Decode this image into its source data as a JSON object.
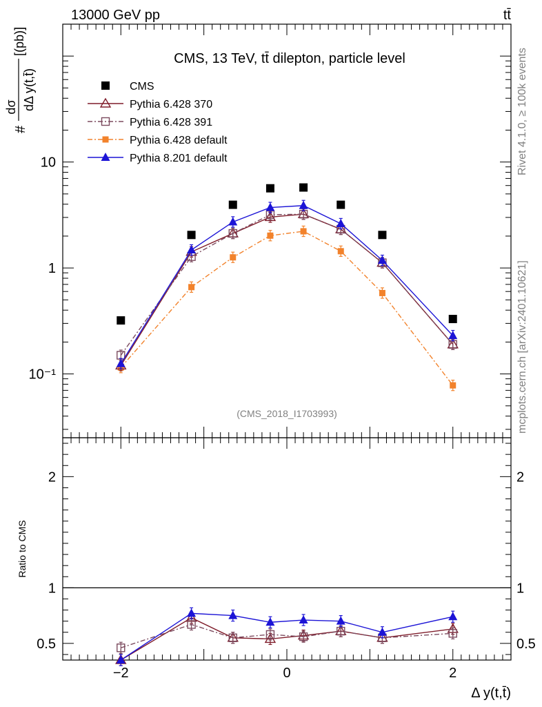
{
  "header": {
    "energy_label": "13000 GeV pp",
    "process_label": "tt̄"
  },
  "side_text": {
    "rivet": "Rivet 4.1.0, ≥ 100k events",
    "source": "mcplots.cern.ch [arXiv:2401.10621]"
  },
  "chart_data": [
    {
      "type": "scatter",
      "panel": "main",
      "title": "CMS, 13 TeV, tt̄ dilepton, particle level",
      "ylabel": "#dσ/dΔ y(t,t̄)[(pb)]",
      "ylabel_prefix": "#",
      "ylabel_numerator": "dσ",
      "ylabel_denominator": "dΔ y(t,t̄)",
      "ylabel_unit": "[(pb)]",
      "yscale": "log",
      "ylim": [
        0.025,
        200
      ],
      "xlim": [
        -2.7,
        2.7
      ],
      "y_ticks": [
        "10⁻¹",
        "1",
        "10"
      ],
      "analysis_id": "(CMS_2018_I1703993)",
      "x": [
        -2.0,
        -1.15,
        -0.65,
        -0.2,
        0.2,
        0.65,
        1.15,
        2.0
      ],
      "series": [
        {
          "name": "CMS",
          "color": "#000000",
          "marker": "square-filled",
          "line": "none",
          "values": [
            0.32,
            2.05,
            3.95,
            5.65,
            5.75,
            3.95,
            2.05,
            0.33
          ]
        },
        {
          "name": "Pythia 6.428 370",
          "color": "#7f1c2a",
          "marker": "triangle-open",
          "line": "solid",
          "values": [
            0.12,
            1.42,
            2.12,
            3.02,
            3.22,
            2.32,
            1.12,
            0.19
          ]
        },
        {
          "name": "Pythia 6.428 391",
          "color": "#7b4a5e",
          "marker": "square-open",
          "line": "dashdot",
          "values": [
            0.15,
            1.28,
            2.12,
            3.18,
            3.22,
            2.32,
            1.12,
            0.19
          ]
        },
        {
          "name": "Pythia 6.428 default",
          "color": "#f2822b",
          "marker": "square-filled-small",
          "line": "dashdot",
          "values": [
            0.115,
            0.66,
            1.26,
            2.02,
            2.22,
            1.44,
            0.58,
            0.078
          ]
        },
        {
          "name": "Pythia 8.201 default",
          "color": "#1c14d6",
          "marker": "triangle-filled",
          "line": "solid",
          "values": [
            0.125,
            1.48,
            2.72,
            3.72,
            3.88,
            2.62,
            1.18,
            0.23
          ]
        }
      ]
    },
    {
      "type": "line",
      "panel": "ratio",
      "ylabel": "Ratio to CMS",
      "xlabel": "Δ y(t,t̄)",
      "ylim": [
        0.35,
        2.35
      ],
      "xlim": [
        -2.7,
        2.7
      ],
      "y_ticks": [
        "0.5",
        "1",
        "2"
      ],
      "x_ticks": [
        "−2",
        "0",
        "2"
      ],
      "x": [
        -2.0,
        -1.15,
        -0.65,
        -0.2,
        0.2,
        0.65,
        1.15,
        2.0
      ],
      "series": [
        {
          "name": "Pythia 6.428 370",
          "color": "#7f1c2a",
          "values": [
            0.35,
            0.73,
            0.55,
            0.54,
            0.57,
            0.61,
            0.55,
            0.63
          ]
        },
        {
          "name": "Pythia 6.428 391",
          "color": "#7b4a5e",
          "values": [
            0.46,
            0.67,
            0.55,
            0.58,
            0.56,
            0.61,
            0.55,
            0.59
          ]
        },
        {
          "name": "Pythia 8.201 default",
          "color": "#1c14d6",
          "values": [
            0.35,
            0.77,
            0.75,
            0.69,
            0.71,
            0.7,
            0.6,
            0.74
          ]
        }
      ]
    }
  ]
}
